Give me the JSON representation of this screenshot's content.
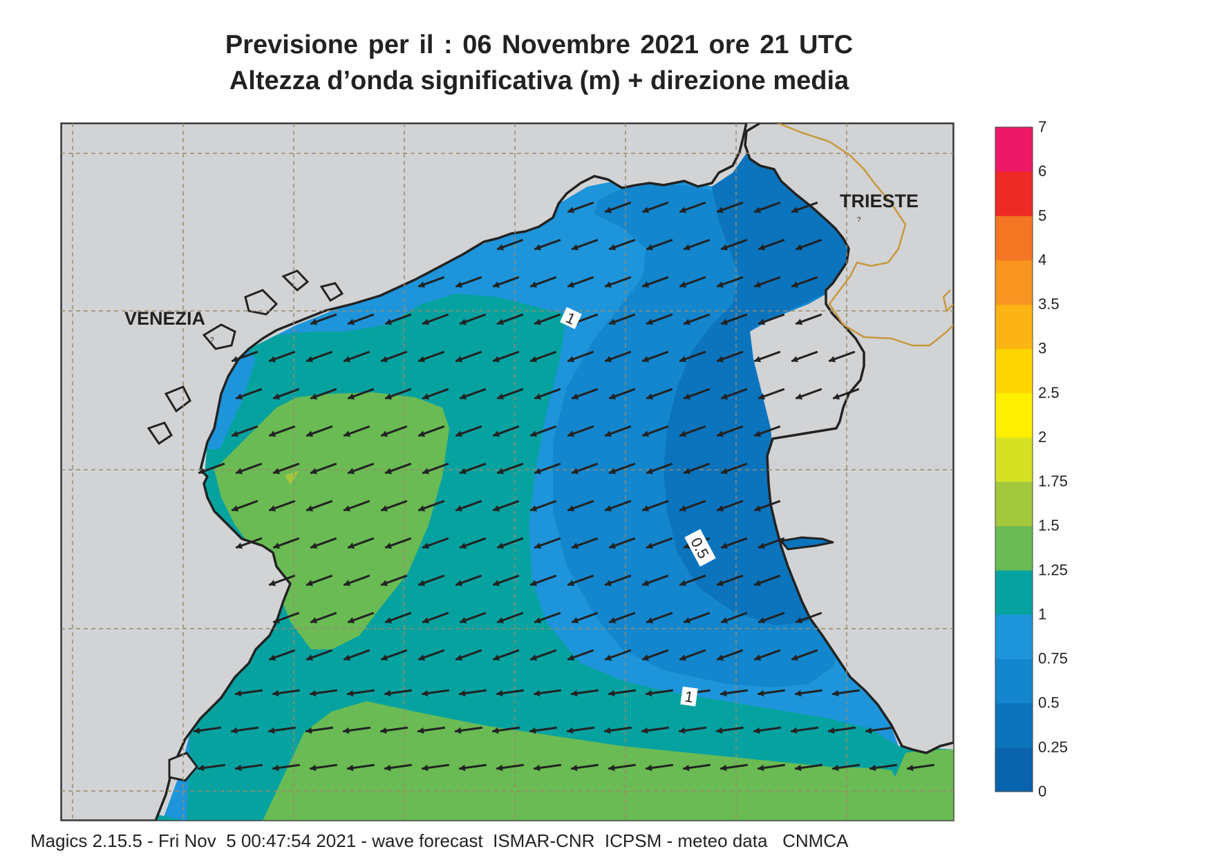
{
  "title": {
    "line1": "Previsione per il  :  06 Novembre  2021   ore 21 UTC",
    "line2": "Altezza d’onda significativa (m) + direzione media"
  },
  "cities": {
    "venezia": "VENEZIA",
    "trieste": "TRIESTE"
  },
  "contour_labels": {
    "c1_top": "1",
    "c05": "0.5",
    "c1_bottom": "1"
  },
  "colorbar": {
    "levels": [
      "0",
      "0.25",
      "0.5",
      "0.75",
      "1",
      "1.25",
      "1.5",
      "1.75",
      "2",
      "2.5",
      "3",
      "3.5",
      "4",
      "5",
      "6",
      "7"
    ],
    "colors": [
      "#0a63ad",
      "#0b74bd",
      "#1386cd",
      "#1e95da",
      "#06a2a0",
      "#6abb54",
      "#a3c83c",
      "#d6e123",
      "#fff000",
      "#ffd500",
      "#fbb414",
      "#f89520",
      "#f47622",
      "#ee2a27",
      "#ee1966"
    ]
  },
  "colors": {
    "land": "#d2d3d5",
    "coast": "#222222",
    "border": "#c6983c",
    "grid": "#9a8a6a",
    "arrow": "#222222"
  },
  "map_data": {
    "field": "significant wave height (m) + mean direction",
    "valid_time": "06 Novembre 2021 21 UTC",
    "mean_direction": "toward south-west"
  },
  "footer": "Magics 2.15.5 - Fri Nov  5 00:47:54 2021 - wave forecast  ISMAR-CNR  ICPSM - meteo data   CNMCA"
}
